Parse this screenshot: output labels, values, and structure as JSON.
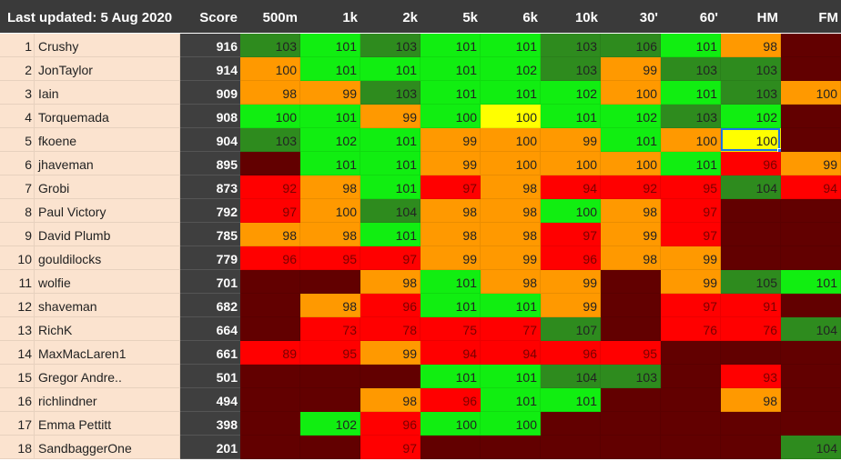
{
  "header": {
    "updated": "Last updated: 5 Aug 2020",
    "score": "Score",
    "events": [
      "500m",
      "1k",
      "2k",
      "5k",
      "6k",
      "10k",
      "30'",
      "60'",
      "HM",
      "FM"
    ]
  },
  "colors": {
    "dark_green": "#2e8b1e",
    "green": "#11ee11",
    "orange": "#ff9900",
    "yellow": "#ffff00",
    "red": "#ff0000",
    "maroon": "#620000",
    "name_bg": "#fbe3cf",
    "header_bg": "#3a3a3a",
    "selection": "#1a73e8"
  },
  "selected_cell": {
    "row": 5,
    "event": "HM",
    "value": "100"
  },
  "rows": [
    {
      "rank": "1",
      "name": "Crushy",
      "score": "916",
      "cells": [
        [
          "103",
          "dg"
        ],
        [
          "101",
          "g"
        ],
        [
          "103",
          "dg"
        ],
        [
          "101",
          "g"
        ],
        [
          "101",
          "g"
        ],
        [
          "103",
          "dg"
        ],
        [
          "106",
          "dg"
        ],
        [
          "101",
          "g"
        ],
        [
          "98",
          "o"
        ],
        [
          "",
          "m"
        ]
      ]
    },
    {
      "rank": "2",
      "name": "JonTaylor",
      "score": "914",
      "cells": [
        [
          "100",
          "o"
        ],
        [
          "101",
          "g"
        ],
        [
          "101",
          "g"
        ],
        [
          "101",
          "g"
        ],
        [
          "102",
          "g"
        ],
        [
          "103",
          "dg"
        ],
        [
          "99",
          "o"
        ],
        [
          "103",
          "dg"
        ],
        [
          "103",
          "dg"
        ],
        [
          "",
          "m"
        ]
      ]
    },
    {
      "rank": "3",
      "name": "Iain",
      "score": "909",
      "cells": [
        [
          "98",
          "o"
        ],
        [
          "99",
          "o"
        ],
        [
          "103",
          "dg"
        ],
        [
          "101",
          "g"
        ],
        [
          "101",
          "g"
        ],
        [
          "102",
          "g"
        ],
        [
          "100",
          "o"
        ],
        [
          "101",
          "g"
        ],
        [
          "103",
          "dg"
        ],
        [
          "100",
          "o"
        ]
      ]
    },
    {
      "rank": "4",
      "name": "Torquemada",
      "score": "908",
      "cells": [
        [
          "100",
          "g"
        ],
        [
          "101",
          "g"
        ],
        [
          "99",
          "o"
        ],
        [
          "100",
          "g"
        ],
        [
          "100",
          "y"
        ],
        [
          "101",
          "g"
        ],
        [
          "102",
          "g"
        ],
        [
          "103",
          "dg"
        ],
        [
          "102",
          "g"
        ],
        [
          "",
          "m"
        ]
      ]
    },
    {
      "rank": "5",
      "name": "fkoene",
      "score": "904",
      "cells": [
        [
          "103",
          "dg"
        ],
        [
          "102",
          "g"
        ],
        [
          "101",
          "g"
        ],
        [
          "99",
          "o"
        ],
        [
          "100",
          "o"
        ],
        [
          "99",
          "o"
        ],
        [
          "101",
          "g"
        ],
        [
          "100",
          "o"
        ],
        [
          "100",
          "y"
        ],
        [
          "",
          "m"
        ]
      ]
    },
    {
      "rank": "6",
      "name": "jhaveman",
      "score": "895",
      "cells": [
        [
          "",
          "m"
        ],
        [
          "101",
          "g"
        ],
        [
          "101",
          "g"
        ],
        [
          "99",
          "o"
        ],
        [
          "100",
          "o"
        ],
        [
          "100",
          "o"
        ],
        [
          "100",
          "o"
        ],
        [
          "101",
          "g"
        ],
        [
          "96",
          "r"
        ],
        [
          "99",
          "o"
        ]
      ]
    },
    {
      "rank": "7",
      "name": "Grobi",
      "score": "873",
      "cells": [
        [
          "92",
          "r"
        ],
        [
          "98",
          "o"
        ],
        [
          "101",
          "g"
        ],
        [
          "97",
          "r"
        ],
        [
          "98",
          "o"
        ],
        [
          "94",
          "r"
        ],
        [
          "92",
          "r"
        ],
        [
          "95",
          "r"
        ],
        [
          "104",
          "dg"
        ],
        [
          "94",
          "r"
        ]
      ]
    },
    {
      "rank": "8",
      "name": "Paul Victory",
      "score": "792",
      "cells": [
        [
          "97",
          "r"
        ],
        [
          "100",
          "o"
        ],
        [
          "104",
          "dg"
        ],
        [
          "98",
          "o"
        ],
        [
          "98",
          "o"
        ],
        [
          "100",
          "g"
        ],
        [
          "98",
          "o"
        ],
        [
          "97",
          "r"
        ],
        [
          "",
          "m"
        ],
        [
          "",
          "m"
        ]
      ]
    },
    {
      "rank": "9",
      "name": "David Plumb",
      "score": "785",
      "cells": [
        [
          "98",
          "o"
        ],
        [
          "98",
          "o"
        ],
        [
          "101",
          "g"
        ],
        [
          "98",
          "o"
        ],
        [
          "98",
          "o"
        ],
        [
          "97",
          "r"
        ],
        [
          "99",
          "o"
        ],
        [
          "97",
          "r"
        ],
        [
          "",
          "m"
        ],
        [
          "",
          "m"
        ]
      ]
    },
    {
      "rank": "10",
      "name": "gouldilocks",
      "score": "779",
      "cells": [
        [
          "96",
          "r"
        ],
        [
          "95",
          "r"
        ],
        [
          "97",
          "r"
        ],
        [
          "99",
          "o"
        ],
        [
          "99",
          "o"
        ],
        [
          "96",
          "r"
        ],
        [
          "98",
          "o"
        ],
        [
          "99",
          "o"
        ],
        [
          "",
          "m"
        ],
        [
          "",
          "m"
        ]
      ]
    },
    {
      "rank": "11",
      "name": "wolfie",
      "score": "701",
      "cells": [
        [
          "",
          "m"
        ],
        [
          "",
          "m"
        ],
        [
          "98",
          "o"
        ],
        [
          "101",
          "g"
        ],
        [
          "98",
          "o"
        ],
        [
          "99",
          "o"
        ],
        [
          "",
          "m"
        ],
        [
          "99",
          "o"
        ],
        [
          "105",
          "dg"
        ],
        [
          "101",
          "g"
        ]
      ]
    },
    {
      "rank": "12",
      "name": "shaveman",
      "score": "682",
      "cells": [
        [
          "",
          "m"
        ],
        [
          "98",
          "o"
        ],
        [
          "96",
          "r"
        ],
        [
          "101",
          "g"
        ],
        [
          "101",
          "g"
        ],
        [
          "99",
          "o"
        ],
        [
          "",
          "m"
        ],
        [
          "97",
          "r"
        ],
        [
          "91",
          "r"
        ],
        [
          "",
          "m"
        ]
      ]
    },
    {
      "rank": "13",
      "name": "RichK",
      "score": "664",
      "cells": [
        [
          "",
          "m"
        ],
        [
          "73",
          "r"
        ],
        [
          "78",
          "r"
        ],
        [
          "75",
          "r"
        ],
        [
          "77",
          "r"
        ],
        [
          "107",
          "dg"
        ],
        [
          "",
          "m"
        ],
        [
          "76",
          "r"
        ],
        [
          "76",
          "r"
        ],
        [
          "104",
          "dg"
        ]
      ]
    },
    {
      "rank": "14",
      "name": "MaxMacLaren1",
      "score": "661",
      "cells": [
        [
          "89",
          "r"
        ],
        [
          "95",
          "r"
        ],
        [
          "99",
          "o"
        ],
        [
          "94",
          "r"
        ],
        [
          "94",
          "r"
        ],
        [
          "96",
          "r"
        ],
        [
          "95",
          "r"
        ],
        [
          "",
          "m"
        ],
        [
          "",
          "m"
        ],
        [
          "",
          "m"
        ]
      ]
    },
    {
      "rank": "15",
      "name": "Gregor Andre..",
      "score": "501",
      "cells": [
        [
          "",
          "m"
        ],
        [
          "",
          "m"
        ],
        [
          "",
          "m"
        ],
        [
          "101",
          "g"
        ],
        [
          "101",
          "g"
        ],
        [
          "104",
          "dg"
        ],
        [
          "103",
          "dg"
        ],
        [
          "",
          "m"
        ],
        [
          "93",
          "r"
        ],
        [
          "",
          "m"
        ]
      ]
    },
    {
      "rank": "16",
      "name": "richlindner",
      "score": "494",
      "cells": [
        [
          "",
          "m"
        ],
        [
          "",
          "m"
        ],
        [
          "98",
          "o"
        ],
        [
          "96",
          "r"
        ],
        [
          "101",
          "g"
        ],
        [
          "101",
          "g"
        ],
        [
          "",
          "m"
        ],
        [
          "",
          "m"
        ],
        [
          "98",
          "o"
        ],
        [
          "",
          "m"
        ]
      ]
    },
    {
      "rank": "17",
      "name": "Emma Pettitt",
      "score": "398",
      "cells": [
        [
          "",
          "m"
        ],
        [
          "102",
          "g"
        ],
        [
          "96",
          "r"
        ],
        [
          "100",
          "g"
        ],
        [
          "100",
          "g"
        ],
        [
          "",
          "m"
        ],
        [
          "",
          "m"
        ],
        [
          "",
          "m"
        ],
        [
          "",
          "m"
        ],
        [
          "",
          "m"
        ]
      ]
    },
    {
      "rank": "18",
      "name": "SandbaggerOne",
      "score": "201",
      "cells": [
        [
          "",
          "m"
        ],
        [
          "",
          "m"
        ],
        [
          "97",
          "r"
        ],
        [
          "",
          "m"
        ],
        [
          "",
          "m"
        ],
        [
          "",
          "m"
        ],
        [
          "",
          "m"
        ],
        [
          "",
          "m"
        ],
        [
          "",
          "m"
        ],
        [
          "104",
          "dg"
        ]
      ]
    }
  ]
}
